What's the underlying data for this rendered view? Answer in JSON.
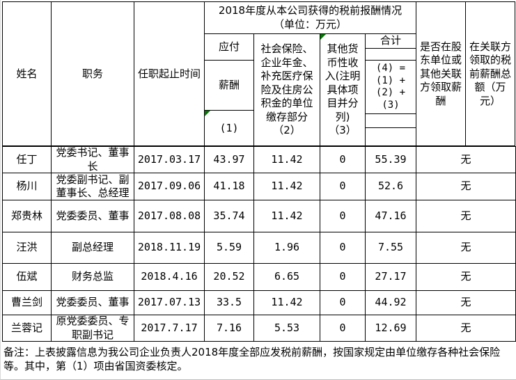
{
  "header": {
    "name": "姓名",
    "position": "职务",
    "term": "任职起止时间",
    "report_title": "2018年度从本公司获得的税前报酬情况\n（单位：万元）",
    "payable": "应付",
    "salary": "薪酬",
    "salary_index": "(1)",
    "social_insurance": "社会保险、企业年金、补充医疗保险及住房公积金的单位缴存部分（2）",
    "other_income": "其他货币性收入(注明具体项目并分列)（3）",
    "total_label": "合计",
    "total_formula": "(4) =\n(1) +\n(2) +\n(3)",
    "shareholder_pay": "是否在股东单位或其他关联方领取薪酬",
    "related_party_pay": "在关联方领取的税前薪酬总额（万元）"
  },
  "rows": [
    {
      "name": "任丁",
      "position": "党委书记、董事长",
      "term": "2017.03.17",
      "salary": "43.97",
      "social": "11.42",
      "other": "0",
      "total": "55.39",
      "shareholder": "无"
    },
    {
      "name": "杨川",
      "position": "党委副书记、副董事长、总经理",
      "term": "2017.09.06",
      "salary": "41.18",
      "social": "11.42",
      "other": "0",
      "total": "52.6",
      "shareholder": "无"
    },
    {
      "name": "郑贵林",
      "position": "党委委员、董事",
      "term": "2017.08.08",
      "salary": "35.74",
      "social": "11.42",
      "other": "0",
      "total": "47.16",
      "shareholder": "无"
    },
    {
      "name": "汪洪",
      "position": "副总经理",
      "term": "2018.11.19",
      "salary": "5.59",
      "social": "1.96",
      "other": "0",
      "total": "7.55",
      "shareholder": "无"
    },
    {
      "name": "伍斌",
      "position": "财务总监",
      "term": "2018.4.16",
      "salary": "20.52",
      "social": "6.65",
      "other": "0",
      "total": "27.17",
      "shareholder": "无"
    },
    {
      "name": "曹兰剑",
      "position": "党委委员、董事",
      "term": "2017.07.13",
      "salary": "33.5",
      "social": "11.42",
      "other": "0",
      "total": "44.92",
      "shareholder": "无"
    },
    {
      "name": "兰蓉记",
      "position": "原党委委员、专职副书记",
      "term": "2017.7.17",
      "salary": "7.16",
      "social": "5.53",
      "other": "0",
      "total": "12.69",
      "shareholder": "无"
    }
  ],
  "related_party_total": "无",
  "note": "备注：上表披露信息为我公司企业负责人2018年度全部应发税前薪酬，按国家规定由单位缴存各种社会保险等。其中，第（1）项由省国资委核定。"
}
